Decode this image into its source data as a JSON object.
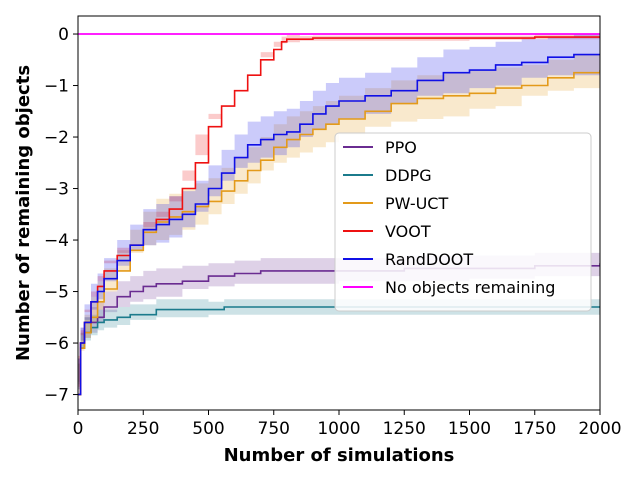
{
  "chart_data": {
    "type": "line",
    "title": "",
    "xlabel": "Number of simulations",
    "ylabel": "Number of remaining objects",
    "xlim": [
      0,
      2000
    ],
    "ylim": [
      -7.3,
      0.35
    ],
    "xticks": [
      0,
      250,
      500,
      750,
      1000,
      1250,
      1500,
      1750,
      2000
    ],
    "yticks": [
      0,
      -1,
      -2,
      -3,
      -4,
      -5,
      -6,
      -7
    ],
    "xtick_labels": [
      "0",
      "250",
      "500",
      "750",
      "1000",
      "1250",
      "1500",
      "1750",
      "2000"
    ],
    "ytick_labels": [
      "0",
      "−1",
      "−2",
      "−3",
      "−4",
      "−5",
      "−6",
      "−7"
    ],
    "grid": false,
    "legend_position": "center-right",
    "series": [
      {
        "name": "PPO",
        "color": "#6a2c91",
        "x": [
          0,
          10,
          25,
          50,
          75,
          100,
          150,
          200,
          250,
          300,
          400,
          500,
          600,
          700,
          800,
          1000,
          1250,
          1500,
          1750,
          2000
        ],
        "y": [
          -7.0,
          -6.0,
          -5.8,
          -5.6,
          -5.5,
          -5.3,
          -5.1,
          -5.0,
          -4.9,
          -4.85,
          -4.8,
          -4.7,
          -4.65,
          -4.6,
          -4.6,
          -4.6,
          -4.55,
          -4.55,
          -4.5,
          -4.45
        ],
        "band": [
          0.25,
          0.3,
          0.3,
          0.3,
          0.3,
          0.3,
          0.3,
          0.3,
          0.3,
          0.3,
          0.3,
          0.25,
          0.25,
          0.25,
          0.25,
          0.25,
          0.25,
          0.25,
          0.25,
          0.25
        ]
      },
      {
        "name": "DDPG",
        "color": "#1b7b8c",
        "x": [
          0,
          10,
          25,
          50,
          75,
          100,
          150,
          200,
          300,
          500,
          560,
          750,
          1000,
          1500,
          2000
        ],
        "y": [
          -7.0,
          -6.1,
          -5.8,
          -5.7,
          -5.6,
          -5.55,
          -5.5,
          -5.45,
          -5.35,
          -5.35,
          -5.3,
          -5.3,
          -5.3,
          -5.3,
          -5.3
        ],
        "band": [
          0.2,
          0.3,
          0.3,
          0.25,
          0.25,
          0.2,
          0.2,
          0.2,
          0.2,
          0.15,
          0.15,
          0.15,
          0.15,
          0.15,
          0.15
        ]
      },
      {
        "name": "PW-UCT",
        "color": "#e39a1a",
        "x": [
          0,
          10,
          25,
          50,
          75,
          100,
          150,
          200,
          250,
          300,
          350,
          400,
          450,
          500,
          550,
          600,
          650,
          700,
          750,
          800,
          850,
          900,
          950,
          1000,
          1100,
          1200,
          1300,
          1400,
          1500,
          1600,
          1700,
          1800,
          1900,
          2000
        ],
        "y": [
          -7.0,
          -6.1,
          -5.8,
          -5.5,
          -5.2,
          -4.95,
          -4.6,
          -4.2,
          -3.85,
          -3.65,
          -3.55,
          -3.45,
          -3.35,
          -3.25,
          -3.05,
          -2.85,
          -2.65,
          -2.45,
          -2.2,
          -2.05,
          -1.95,
          -1.85,
          -1.75,
          -1.65,
          -1.5,
          -1.35,
          -1.25,
          -1.2,
          -1.15,
          -1.05,
          -1.0,
          -0.85,
          -0.75,
          -0.7
        ],
        "band": [
          0.1,
          0.3,
          0.35,
          0.4,
          0.4,
          0.4,
          0.4,
          0.4,
          0.4,
          0.45,
          0.45,
          0.45,
          0.45,
          0.45,
          0.45,
          0.45,
          0.45,
          0.45,
          0.45,
          0.45,
          0.45,
          0.45,
          0.45,
          0.45,
          0.45,
          0.45,
          0.45,
          0.45,
          0.45,
          0.4,
          0.4,
          0.35,
          0.35,
          0.35
        ]
      },
      {
        "name": "VOOT",
        "color": "#ee1111",
        "x": [
          0,
          10,
          25,
          50,
          75,
          100,
          150,
          200,
          250,
          300,
          350,
          400,
          450,
          500,
          550,
          600,
          650,
          700,
          750,
          780,
          800,
          850,
          900,
          1000,
          1250,
          1500,
          1750,
          2000
        ],
        "y": [
          -7.0,
          -6.0,
          -5.6,
          -5.2,
          -4.9,
          -4.6,
          -4.3,
          -4.1,
          -3.8,
          -3.6,
          -3.4,
          -3.0,
          -2.5,
          -1.8,
          -1.4,
          -1.1,
          -0.8,
          -0.5,
          -0.3,
          -0.15,
          -0.1,
          -0.1,
          -0.08,
          -0.08,
          -0.08,
          -0.08,
          -0.06,
          -0.05
        ],
        "band": [
          0.15,
          0.25,
          0.25,
          0.2,
          0.2,
          0.2,
          0.15,
          0.15,
          0.15,
          0.15,
          0.15,
          0.15,
          0.15,
          0.15,
          0.15,
          0.15,
          0.15,
          0.15,
          0.15,
          0.1,
          0.08,
          0.06,
          0.05,
          0.05,
          0.05,
          0.05,
          0.05,
          0.05
        ]
      },
      {
        "name": "RandDOOT",
        "color": "#1010e6",
        "x": [
          0,
          10,
          25,
          50,
          75,
          100,
          150,
          200,
          250,
          300,
          350,
          400,
          450,
          500,
          550,
          600,
          650,
          700,
          750,
          800,
          850,
          900,
          950,
          1000,
          1100,
          1200,
          1300,
          1400,
          1500,
          1600,
          1700,
          1800,
          1900,
          2000
        ],
        "y": [
          -7.0,
          -6.0,
          -5.6,
          -5.2,
          -5.0,
          -4.75,
          -4.4,
          -4.1,
          -3.8,
          -3.7,
          -3.6,
          -3.5,
          -3.3,
          -3.0,
          -2.7,
          -2.4,
          -2.15,
          -2.05,
          -1.95,
          -1.9,
          -1.75,
          -1.55,
          -1.4,
          -1.3,
          -1.2,
          -1.1,
          -0.9,
          -0.75,
          -0.7,
          -0.6,
          -0.55,
          -0.45,
          -0.4,
          -0.4
        ],
        "band": [
          0.1,
          0.3,
          0.35,
          0.35,
          0.35,
          0.4,
          0.4,
          0.4,
          0.4,
          0.4,
          0.45,
          0.45,
          0.45,
          0.45,
          0.45,
          0.45,
          0.45,
          0.45,
          0.45,
          0.45,
          0.45,
          0.45,
          0.45,
          0.45,
          0.45,
          0.45,
          0.45,
          0.45,
          0.45,
          0.45,
          0.45,
          0.4,
          0.4,
          0.4
        ]
      },
      {
        "name": "No objects remaining",
        "color": "#ff00ff",
        "x": [
          0,
          2000
        ],
        "y": [
          0,
          0
        ],
        "band": null
      }
    ]
  }
}
